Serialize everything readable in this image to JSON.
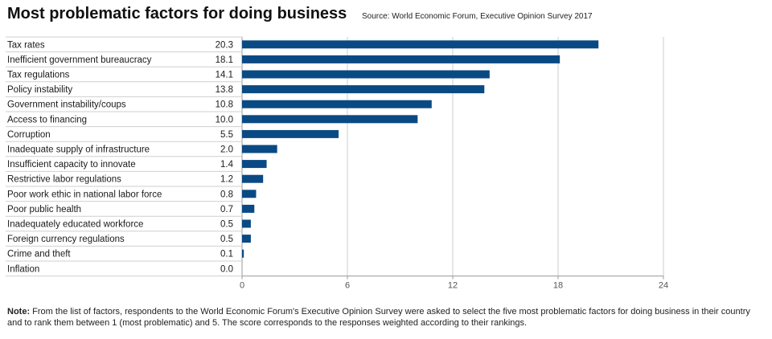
{
  "header": {
    "title": "Most problematic factors for doing business",
    "source": "Source: World Economic Forum, Executive Opinion Survey 2017"
  },
  "note": {
    "label": "Note:",
    "text": "From the list of factors, respondents to the World Economic Forum's Executive Opinion Survey were asked to select the five most problematic factors for doing business in their country and to rank them between 1 (most problematic) and 5. The score corresponds to the responses weighted according to their rankings."
  },
  "colors": {
    "bar": "#0a4a84",
    "row_line": "#cfcfcf",
    "grid": "#cccccc",
    "axis": "#999999",
    "text": "#1a1a1a",
    "tick": "#555555"
  },
  "chart_data": {
    "type": "bar",
    "orientation": "horizontal",
    "title": "Most problematic factors for doing business",
    "xlabel": "",
    "ylabel": "",
    "xlim": [
      0,
      24
    ],
    "xticks": [
      0,
      6,
      12,
      18,
      24
    ],
    "grid": true,
    "categories": [
      "Tax rates",
      "Inefficient government bureaucracy",
      "Tax regulations",
      "Policy instability",
      "Government instability/coups",
      "Access to financing",
      "Corruption",
      "Inadequate supply of infrastructure",
      "Insufficient capacity to innovate",
      "Restrictive labor regulations",
      "Poor work ethic in national labor force",
      "Poor public health",
      "Inadequately educated workforce",
      "Foreign currency regulations",
      "Crime and theft",
      "Inflation"
    ],
    "values": [
      20.3,
      18.1,
      14.1,
      13.8,
      10.8,
      10.0,
      5.5,
      2.0,
      1.4,
      1.2,
      0.8,
      0.7,
      0.5,
      0.5,
      0.1,
      0.0
    ],
    "value_labels": [
      "20.3",
      "18.1",
      "14.1",
      "13.8",
      "10.8",
      "10.0",
      "5.5",
      "2.0",
      "1.4",
      "1.2",
      "0.8",
      "0.7",
      "0.5",
      "0.5",
      "0.1",
      "0.0"
    ]
  }
}
